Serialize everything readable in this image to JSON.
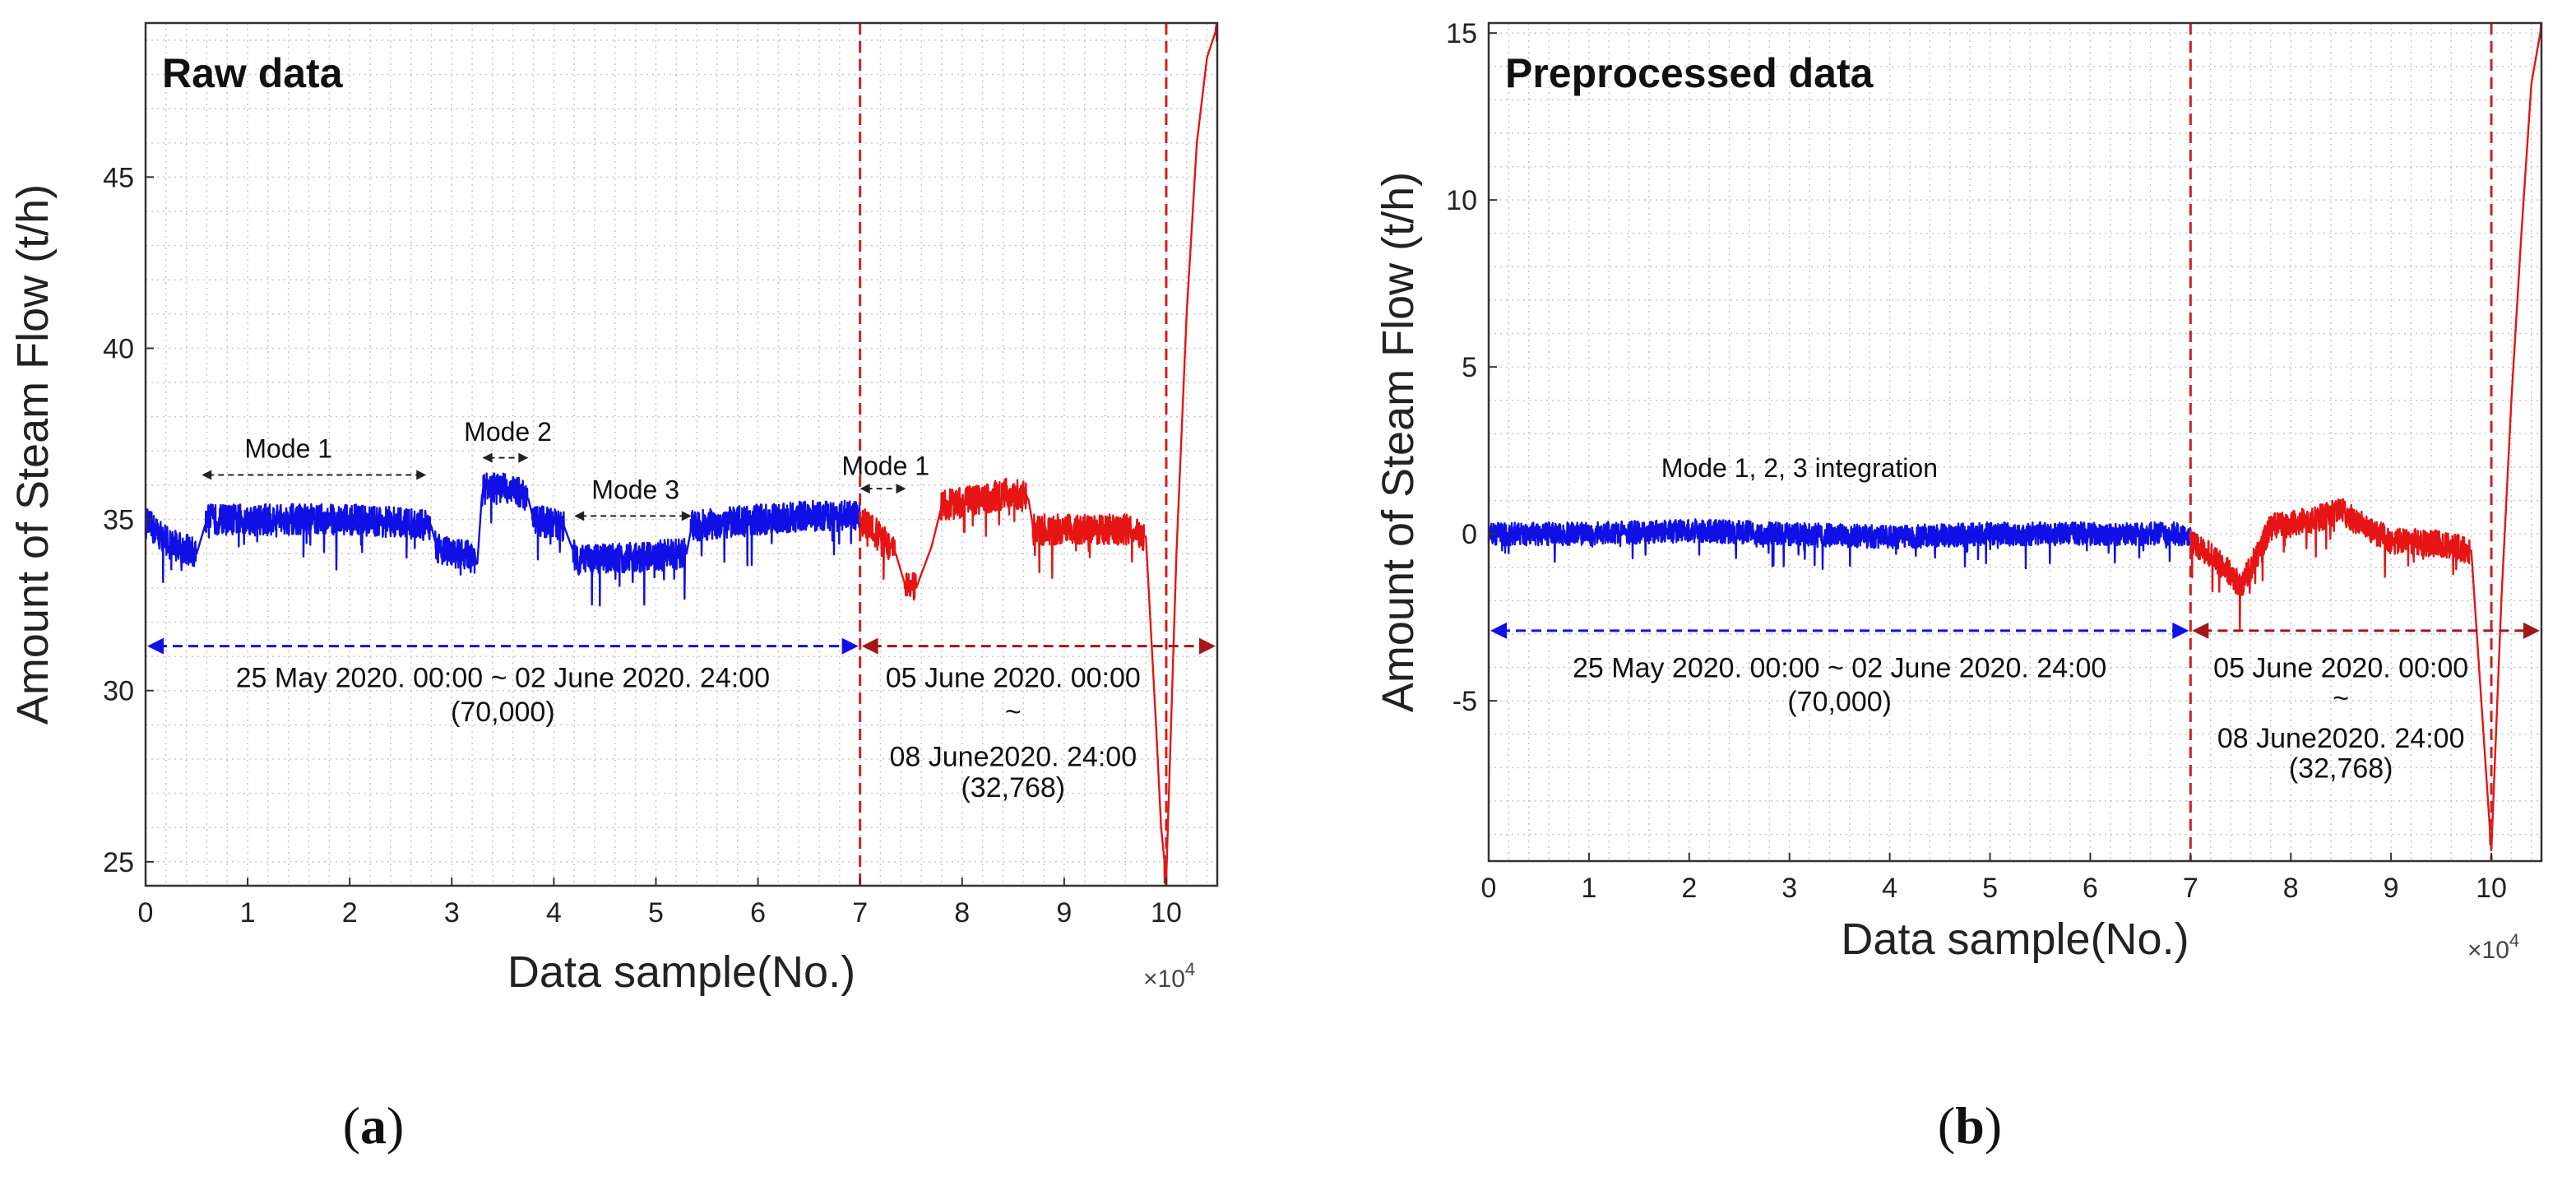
{
  "colors": {
    "training": "#1010e6",
    "test": "#e61414",
    "divider": "#cc2222",
    "grid": "#c8c8c8",
    "axis": "#333333"
  },
  "panels": [
    {
      "id": "a",
      "caption": "(a)",
      "title": "Raw data",
      "xlabel": "Data sample(No.)",
      "ylabel": "Amount of Steam Flow (t/h)",
      "x_multiplier": "×10",
      "x_exponent": "4",
      "chart_data": {
        "type": "line",
        "title": "Raw data",
        "xlabel": "Data sample(No.)",
        "ylabel": "Amount of Steam Flow (t/h)",
        "xlim": [
          0,
          10.5
        ],
        "ylim": [
          24.3,
          49.5
        ],
        "xticks": [
          0,
          1,
          2,
          3,
          4,
          5,
          6,
          7,
          8,
          9,
          10
        ],
        "yticks": [
          25,
          30,
          35,
          40,
          45
        ],
        "series": [
          {
            "name": "25 May 2020. 00:00 ~ 02 June 2020. 24:00",
            "color": "training",
            "noise": 0.45,
            "points": [
              [
                0,
                34.9
              ],
              [
                0.25,
                34.3
              ],
              [
                0.5,
                34.0
              ],
              [
                0.6,
                35.0
              ],
              [
                1.0,
                35.0
              ],
              [
                1.5,
                35.0
              ],
              [
                2.0,
                35.0
              ],
              [
                2.5,
                34.9
              ],
              [
                2.8,
                34.8
              ],
              [
                2.85,
                34.2
              ],
              [
                3.0,
                34.0
              ],
              [
                3.15,
                34.0
              ],
              [
                3.25,
                33.7
              ],
              [
                3.3,
                35.9
              ],
              [
                3.6,
                35.9
              ],
              [
                3.75,
                35.6
              ],
              [
                3.8,
                35.0
              ],
              [
                4.1,
                34.8
              ],
              [
                4.2,
                34.0
              ],
              [
                4.25,
                33.8
              ],
              [
                4.8,
                33.9
              ],
              [
                5.3,
                34.0
              ],
              [
                5.35,
                34.8
              ],
              [
                6.0,
                35.0
              ],
              [
                6.5,
                35.1
              ],
              [
                7.0,
                35.1
              ]
            ]
          },
          {
            "name": "05 June 2020. 00:00 ~ 08 June2020. 24:00",
            "color": "test",
            "noise": 0.45,
            "points": [
              [
                7.0,
                35.0
              ],
              [
                7.2,
                34.5
              ],
              [
                7.35,
                34.0
              ],
              [
                7.45,
                33.0
              ],
              [
                7.55,
                33.0
              ],
              [
                7.7,
                34.2
              ],
              [
                7.8,
                35.4
              ],
              [
                8.2,
                35.6
              ],
              [
                8.5,
                35.8
              ],
              [
                8.65,
                35.6
              ],
              [
                8.7,
                34.7
              ],
              [
                9.3,
                34.7
              ],
              [
                9.65,
                34.7
              ],
              [
                9.8,
                34.5
              ],
              [
                9.9,
                29.0
              ],
              [
                9.95,
                26.0
              ],
              [
                10.0,
                24.5
              ],
              [
                10.1,
                34.0
              ],
              [
                10.2,
                41.0
              ],
              [
                10.3,
                46.0
              ],
              [
                10.4,
                48.5
              ],
              [
                10.5,
                49.4
              ]
            ]
          }
        ]
      },
      "dividers": [
        7.0,
        10.0
      ],
      "annotations": [
        {
          "text": "Mode 1",
          "x": 1.4,
          "y": 36.8,
          "x1": 0.55,
          "x2": 2.75,
          "ya": 36.3
        },
        {
          "text": "Mode 2",
          "x": 3.55,
          "y": 37.3,
          "x1": 3.3,
          "x2": 3.75,
          "ya": 36.8
        },
        {
          "text": "Mode 3",
          "x": 4.8,
          "y": 35.6,
          "x1": 4.2,
          "x2": 5.35,
          "ya": 35.1
        },
        {
          "text": "Mode 1",
          "x": 7.25,
          "y": 36.3,
          "x1": 7.0,
          "x2": 7.45,
          "ya": 35.9
        }
      ],
      "training_span": {
        "x1": 0,
        "x2": 7.0,
        "y": 31.3,
        "label1": "25 May 2020. 00:00 ~ 02 June 2020. 24:00",
        "label2": "(70,000)",
        "lx": 3.5,
        "ly1": 30.1,
        "ly2": 29.1
      },
      "test_span": {
        "x1": 7.0,
        "x2": 10.5,
        "y": 31.3,
        "label1": "05 June 2020. 00:00",
        "label2": "~",
        "label3": "08 June2020. 24:00",
        "label4": "(32,768)",
        "lx": 8.5,
        "ly1": 30.1,
        "ly2": 29.1,
        "ly3": 27.8,
        "ly4": 26.9
      }
    },
    {
      "id": "b",
      "caption": "(b)",
      "title": "Preprocessed data",
      "xlabel": "Data sample(No.)",
      "ylabel": "Amount of Steam Flow (t/h)",
      "x_multiplier": "×10",
      "x_exponent": "4",
      "chart_data": {
        "type": "line",
        "title": "Preprocessed data",
        "xlabel": "Data sample(No.)",
        "ylabel": "Amount of Steam Flow (t/h)",
        "xlim": [
          0,
          10.5
        ],
        "ylim": [
          -9.8,
          15.3
        ],
        "xticks": [
          0,
          1,
          2,
          3,
          4,
          5,
          6,
          7,
          8,
          9,
          10
        ],
        "yticks": [
          -5,
          0,
          5,
          10,
          15
        ],
        "series": [
          {
            "name": "Mode 1, 2, 3 integration",
            "color": "training",
            "noise": 0.35,
            "points": [
              [
                0,
                0.0
              ],
              [
                1.0,
                0.0
              ],
              [
                2.0,
                0.1
              ],
              [
                3.0,
                0.0
              ],
              [
                4.0,
                -0.1
              ],
              [
                5.0,
                0.0
              ],
              [
                6.0,
                0.0
              ],
              [
                7.0,
                0.0
              ]
            ]
          },
          {
            "name": "05 June 2020. 00:00 ~ 08 June2020. 24:00",
            "color": "test",
            "noise": 0.4,
            "points": [
              [
                7.0,
                -0.2
              ],
              [
                7.2,
                -0.6
              ],
              [
                7.4,
                -1.2
              ],
              [
                7.5,
                -1.6
              ],
              [
                7.6,
                -1.0
              ],
              [
                7.8,
                0.2
              ],
              [
                8.2,
                0.4
              ],
              [
                8.5,
                0.7
              ],
              [
                8.7,
                0.3
              ],
              [
                9.0,
                -0.2
              ],
              [
                9.5,
                -0.3
              ],
              [
                9.8,
                -0.5
              ],
              [
                9.9,
                -5.0
              ],
              [
                10.0,
                -9.5
              ],
              [
                10.1,
                -2.0
              ],
              [
                10.2,
                4.0
              ],
              [
                10.3,
                9.0
              ],
              [
                10.4,
                13.5
              ],
              [
                10.5,
                15.2
              ]
            ]
          }
        ]
      },
      "dividers": [
        7.0,
        10.0
      ],
      "annotations": [
        {
          "text": "Mode 1, 2, 3 integration",
          "x": 3.1,
          "y": 1.7
        }
      ],
      "training_span": {
        "x1": 0,
        "x2": 7.0,
        "y": -2.9,
        "label1": "25 May 2020. 00:00 ~ 02 June 2020. 24:00",
        "label2": "(70,000)",
        "lx": 3.5,
        "ly1": -4.3,
        "ly2": -5.3
      },
      "test_span": {
        "x1": 7.0,
        "x2": 10.5,
        "y": -2.9,
        "label1": "05 June 2020. 00:00",
        "label2": "~",
        "label3": "08 June2020. 24:00",
        "label4": "(32,768)",
        "lx": 8.5,
        "ly1": -4.3,
        "ly2": -5.2,
        "ly3": -6.4,
        "ly4": -7.3
      }
    }
  ]
}
